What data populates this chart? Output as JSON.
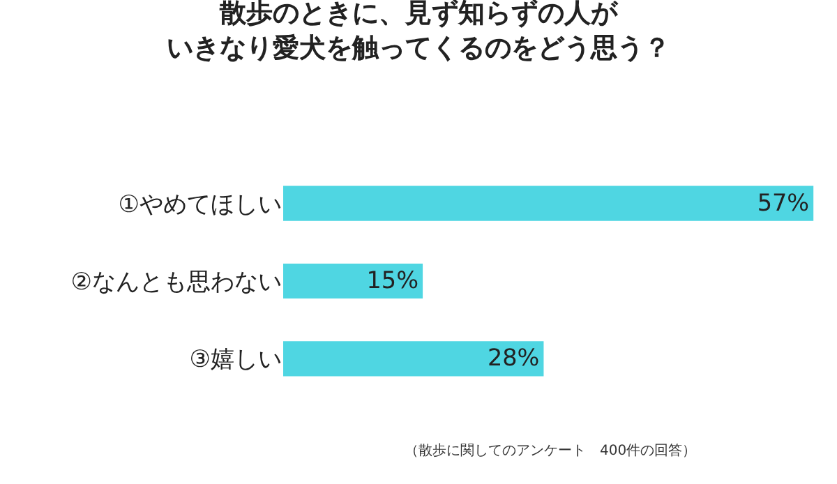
{
  "chart_data": {
    "type": "bar",
    "orientation": "horizontal",
    "title": "散歩のときに、見ず知らずの人がいきなり愛犬を触ってくるのをどう思う？",
    "categories": [
      "①やめてほしい",
      "②なんとも思わない",
      "③嬉しい"
    ],
    "values": [
      57,
      15,
      28
    ],
    "value_labels": [
      "57%",
      "15%",
      "28%"
    ],
    "color": "#4fd6e2",
    "annotations": [
      "（散歩に関してのアンケート　400件の回答）"
    ]
  }
}
